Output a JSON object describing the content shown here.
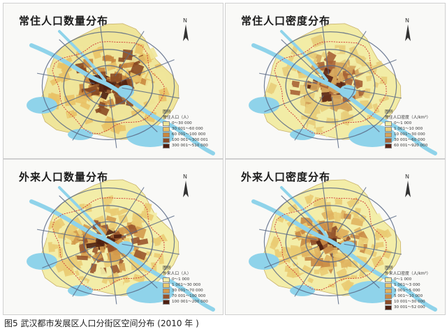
{
  "panels": [
    {
      "title": "常住人口数量分布",
      "legend_heading": "图例",
      "legend_title": "常住人口（人）",
      "legend_items": [
        {
          "label": "0～30 000",
          "color": "#efe59a"
        },
        {
          "label": "30 001～60 000",
          "color": "#e9c267"
        },
        {
          "label": "60 001～100 000",
          "color": "#c9873e"
        },
        {
          "label": "100 001～300 001",
          "color": "#8a4a24"
        },
        {
          "label": "300 001～510 000",
          "color": "#4e1f10"
        }
      ]
    },
    {
      "title": "常住人口密度分布",
      "legend_heading": "图例",
      "legend_title": "常住人口密度（人/km²）",
      "legend_items": [
        {
          "label": "0～1 000",
          "color": "#f2eca6"
        },
        {
          "label": "1 001～10 000",
          "color": "#e8cd7a"
        },
        {
          "label": "10 001～30 000",
          "color": "#d4a35a"
        },
        {
          "label": "30 001～60 000",
          "color": "#a76336"
        },
        {
          "label": "60 001～920 000",
          "color": "#5a2414"
        }
      ]
    },
    {
      "title": "外来人口数量分布",
      "legend_heading": "图例",
      "legend_title": "外来人口（人）",
      "legend_items": [
        {
          "label": "0～1 000",
          "color": "#f3eda8"
        },
        {
          "label": "1 001～30 000",
          "color": "#eacb73"
        },
        {
          "label": "30 001～70 000",
          "color": "#d39a4c"
        },
        {
          "label": "70 001～100 000",
          "color": "#9a552c"
        },
        {
          "label": "100 001～200 000",
          "color": "#4e1f10"
        }
      ]
    },
    {
      "title": "外来人口密度分布",
      "legend_heading": "图例",
      "legend_title": "外来人口密度（人/km²）",
      "legend_items": [
        {
          "label": "0～1 000",
          "color": "#f3eda8"
        },
        {
          "label": "1 001～3 000",
          "color": "#eacb73"
        },
        {
          "label": "3 001～5 000",
          "color": "#e0b25f"
        },
        {
          "label": "5 001～10 000",
          "color": "#c98a45"
        },
        {
          "label": "10 001～30 000",
          "color": "#8e4c28"
        },
        {
          "label": "30 001～52 000",
          "color": "#4e1f10"
        }
      ]
    }
  ],
  "north_label": "N",
  "caption": "图5 武汉都市发展区人口分街区空间分布 (2010 年 )",
  "colors": {
    "water": "#8fd3ea",
    "road": "#5a6a86",
    "boundary": "#cc3333",
    "background": "#f9f9f7"
  }
}
